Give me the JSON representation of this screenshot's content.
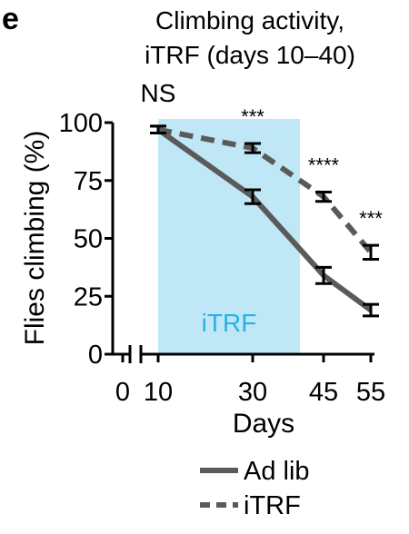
{
  "panel_label": "e",
  "colors": {
    "line": "#5a5a5a",
    "shade": "#bfe7f6",
    "shade_text": "#27b2e6",
    "axis": "#000000"
  },
  "chart_data": {
    "type": "line",
    "title": [
      "Climbing activity,",
      "iTRF (days 10–40)"
    ],
    "xlabel": "Days",
    "ylabel": "Flies climbing (%)",
    "x_ticks": [
      "0",
      "10",
      "30",
      "45",
      "55"
    ],
    "y_ticks": [
      0,
      25,
      50,
      75,
      100
    ],
    "ylim": [
      0,
      100
    ],
    "x_axis_break": true,
    "shaded_region": {
      "from": 10,
      "to": 40,
      "label": "iTRF"
    },
    "series": [
      {
        "name": "Ad lib",
        "style": "solid",
        "x": [
          10,
          30,
          45,
          55
        ],
        "y": [
          97,
          68,
          34,
          19
        ],
        "err": [
          1.5,
          3,
          3.5,
          2.5
        ]
      },
      {
        "name": "iTRF",
        "style": "dashed",
        "x": [
          10,
          30,
          45,
          55
        ],
        "y": [
          97,
          89,
          68,
          44
        ],
        "err": [
          1.5,
          2,
          2,
          3
        ]
      }
    ],
    "annotations": [
      {
        "x": 10,
        "text": "NS"
      },
      {
        "x": 30,
        "text": "***"
      },
      {
        "x": 45,
        "text": "****"
      },
      {
        "x": 55,
        "text": "***"
      }
    ],
    "legend_position": "bottom"
  }
}
